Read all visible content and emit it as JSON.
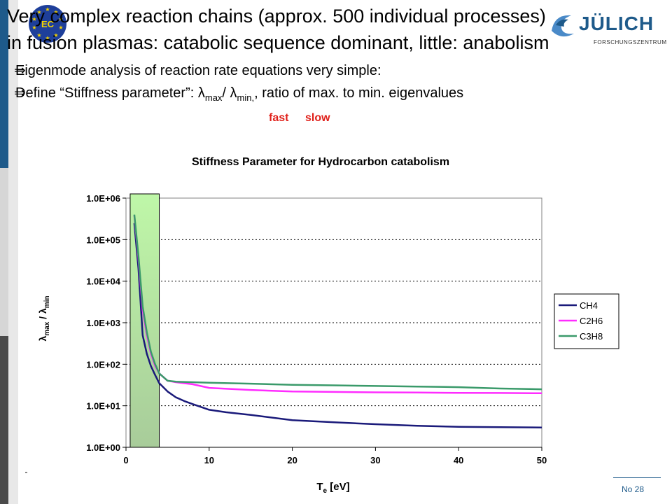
{
  "slide": {
    "title_line1": "Very complex reaction chains (approx. 500 individual processes)",
    "title_line2": "in fusion plasmas: catabolic sequence dominant, little: anabolism",
    "bullet1": "Eigenmode analysis of reaction rate equations  very simple:",
    "bullet2_pre": "Define “Stiffness parameter”: λ",
    "bullet2_sub1": "max",
    "bullet2_mid": "/ λ",
    "bullet2_sub2": "min,",
    "bullet2_post": ", ratio of max. to min. eigenvalues",
    "arrow_glyph": "⇒",
    "fast_label": "fast",
    "slow_label": "slow",
    "page_number": "No 28",
    "logo_ec_text": "EC",
    "logo_fz_text": "JÜLICH",
    "logo_fz_sub": "FORSCHUNGSZENTRUM"
  },
  "colors": {
    "accent_blue": "#1e5a8a",
    "red": "#e0201a",
    "CH4": "#1a1a7a",
    "C2H6": "#ff2cff",
    "C3H8": "#3a9a6a",
    "plot_bg": "#ffffff",
    "highlight_top": "#bff7a8",
    "highlight_bottom": "#a8cc9a"
  },
  "chart_data": {
    "type": "line",
    "title": "Stiffness Parameter for Hydrocarbon catabolism",
    "xlabel": "T",
    "xlabel_sub": "e",
    "xlabel_unit": " [eV]",
    "ylabel": "λ",
    "ylabel_sub1": "max",
    "ylabel_mid": " / λ",
    "ylabel_sub2": "min",
    "y_scale": "log",
    "xlim": [
      0,
      50
    ],
    "ylim": [
      1,
      1000000
    ],
    "x_ticks": [
      0,
      10,
      20,
      30,
      40,
      50
    ],
    "y_ticks": [
      {
        "value": 1,
        "label": "1.0E+00"
      },
      {
        "value": 10,
        "label": "1.0E+01"
      },
      {
        "value": 100,
        "label": "1.0E+02"
      },
      {
        "value": 1000,
        "label": "1.0E+03"
      },
      {
        "value": 10000,
        "label": "1.0E+04"
      },
      {
        "value": 100000,
        "label": "1.0E+05"
      },
      {
        "value": 1000000,
        "label": "1.0E+06"
      }
    ],
    "grid": "horizontal-dotted",
    "legend": "right",
    "highlight_band": [
      0.5,
      4
    ],
    "series": [
      {
        "name": "CH4",
        "color": "#1a1a7a",
        "x": [
          1,
          1.5,
          2,
          2.5,
          3,
          3.5,
          4,
          5,
          6,
          7,
          8,
          10,
          12,
          15,
          20,
          25,
          30,
          35,
          40,
          45,
          50
        ],
        "y": [
          250000,
          20000,
          500,
          180,
          90,
          55,
          35,
          22,
          16,
          13,
          11,
          8,
          7,
          6,
          4.5,
          4,
          3.6,
          3.3,
          3.1,
          3.05,
          3
        ]
      },
      {
        "name": "C2H6",
        "color": "#ff2cff",
        "x": [
          1,
          1.5,
          2,
          2.5,
          3,
          3.5,
          4,
          5,
          6,
          8,
          10,
          15,
          20,
          25,
          30,
          35,
          40,
          45,
          50
        ],
        "y": [
          380000,
          35000,
          2000,
          500,
          180,
          90,
          60,
          40,
          37,
          33,
          27,
          24,
          22,
          21.5,
          21,
          20.8,
          20.5,
          20.3,
          20
        ]
      },
      {
        "name": "C3H8",
        "color": "#3a9a6a",
        "x": [
          1,
          1.5,
          2,
          2.5,
          3,
          3.5,
          4,
          5,
          6,
          8,
          10,
          15,
          20,
          25,
          30,
          35,
          40,
          45,
          50
        ],
        "y": [
          400000,
          40000,
          2500,
          600,
          200,
          100,
          60,
          40,
          38,
          37,
          36,
          34,
          32,
          31,
          30,
          29,
          28,
          26,
          25
        ]
      }
    ]
  }
}
